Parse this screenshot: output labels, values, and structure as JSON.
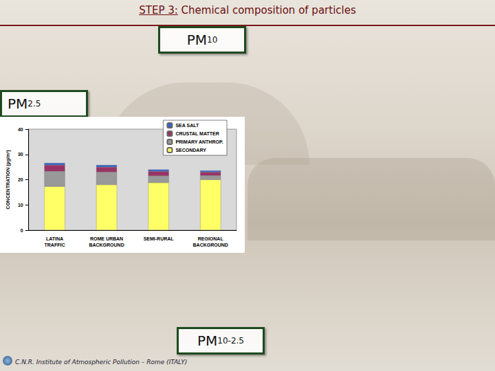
{
  "slide": {
    "title_label": "STEP 3:",
    "title": "Chemical composition of particles",
    "boxes": [
      "PM10",
      "PM2.5",
      "PM10-2.5"
    ],
    "footer": "C.N.R. Institute of Atmospheric Pollution – Rome (ITALY)"
  },
  "chart_data": {
    "type": "bar",
    "stacked": true,
    "y_label": "CONCENTRATION (µg/m³)",
    "categories": [
      "LATINA\nTRAFFIC",
      "ROME URBAN\nBACKGROUND",
      "SEMI-RURAL",
      "REGIONAL\nBACKGROUND"
    ],
    "series": [
      {
        "name": "SEA SALT",
        "color": "#3366cc",
        "values": [
          0.8,
          0.8,
          0.7,
          0.6
        ]
      },
      {
        "name": "CRUSTAL MATTER",
        "color": "#993366",
        "values": [
          2.5,
          2.0,
          1.8,
          1.4
        ]
      },
      {
        "name": "PRIMARY ANTHROP.",
        "color": "#999999",
        "values": [
          6.0,
          5.0,
          2.7,
          1.6
        ]
      },
      {
        "name": "SECONDARY",
        "color": "#ffff66",
        "values": [
          17.3,
          18.0,
          18.8,
          20.0
        ]
      }
    ],
    "ylim": [
      0,
      40
    ],
    "yticks": [
      0,
      10,
      20,
      30,
      40
    ],
    "grid": false,
    "legend": "upper right"
  }
}
